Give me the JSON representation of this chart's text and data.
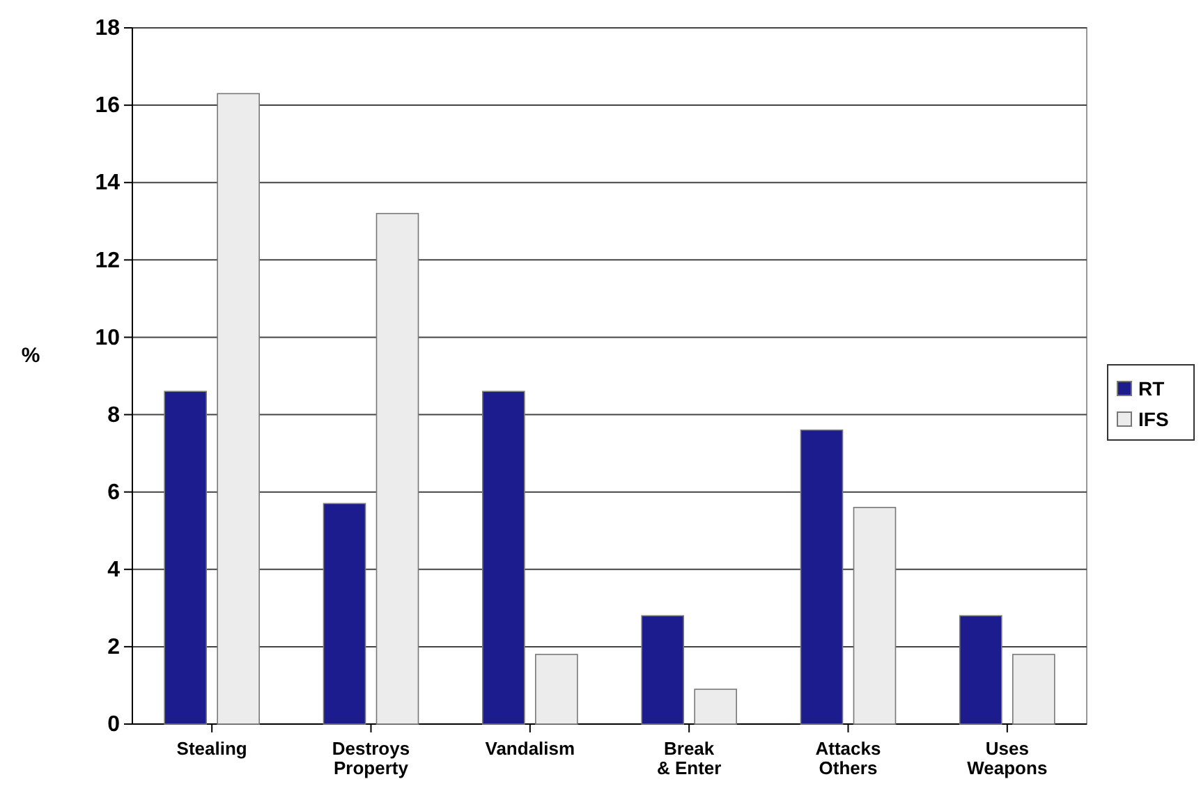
{
  "chart_data": {
    "type": "bar",
    "ylabel": "%",
    "categories": [
      "Stealing",
      "Destroys Property",
      "Vandalism",
      "Break & Enter",
      "Attacks Others",
      "Uses Weapons"
    ],
    "series": [
      {
        "name": "RT",
        "color": "#1c1c8f",
        "values": [
          8.6,
          5.7,
          8.6,
          2.8,
          7.6,
          2.8
        ]
      },
      {
        "name": "IFS",
        "color": "#ececec",
        "values": [
          16.3,
          13.2,
          1.8,
          0.9,
          5.6,
          1.8
        ]
      }
    ],
    "ylim": [
      0,
      18
    ],
    "yticks": [
      0,
      2,
      4,
      6,
      8,
      10,
      12,
      14,
      16,
      18
    ],
    "grid": "y",
    "legend": "right"
  }
}
